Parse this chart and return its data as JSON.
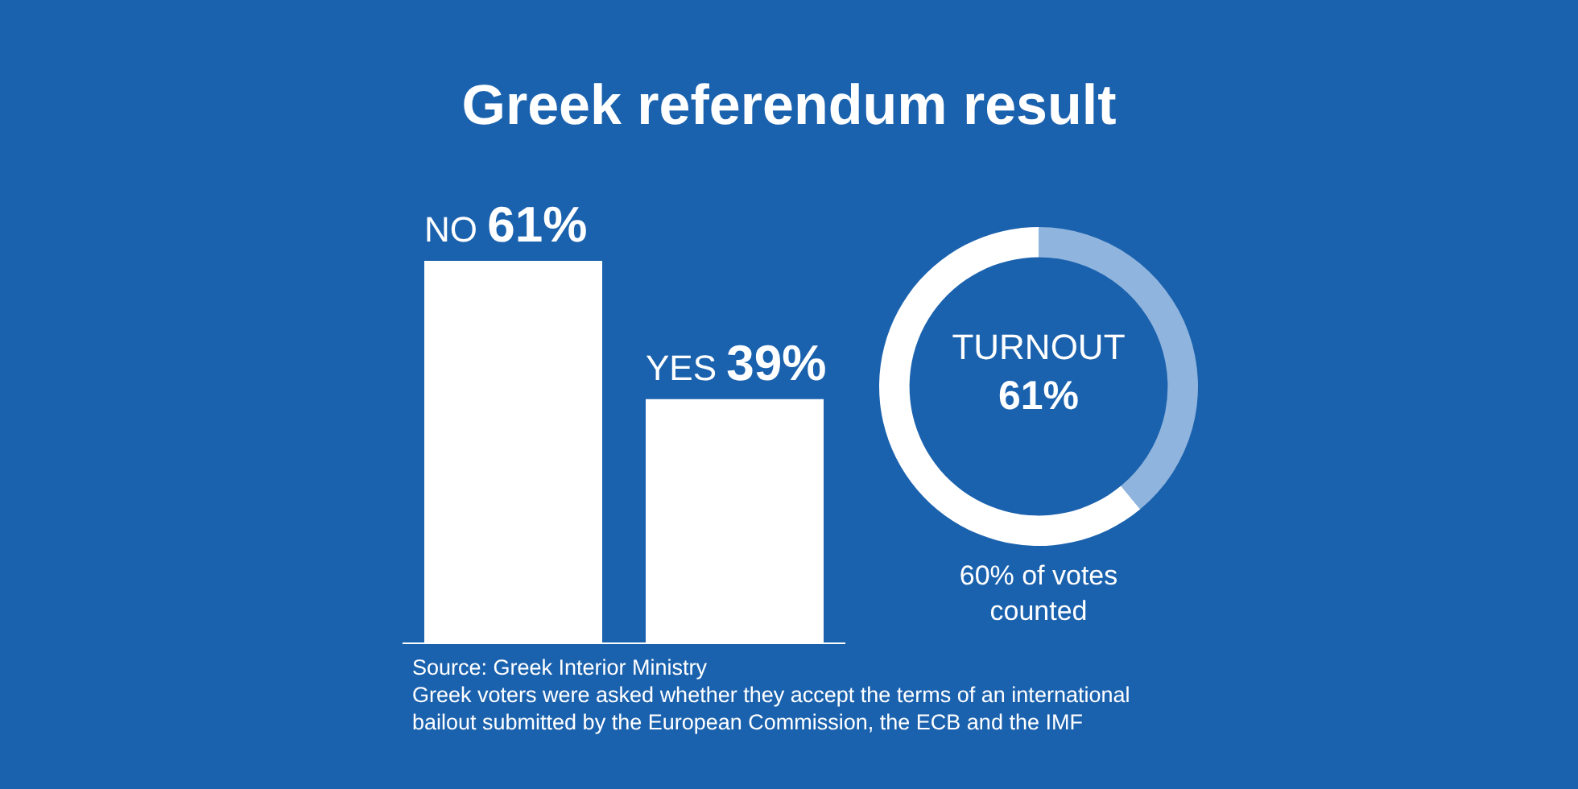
{
  "chart_data": [
    {
      "type": "bar",
      "title": "Greek referendum result",
      "categories": [
        "NO",
        "YES"
      ],
      "values": [
        61,
        39
      ],
      "value_labels": [
        "61%",
        "39%"
      ],
      "color": "#ffffff",
      "annotations": [
        "Source: Greek Interior Ministry",
        "Greek voters were asked whether they accept the terms of an international bailout submitted by the European Commission, the ECB and the IMF"
      ]
    },
    {
      "type": "donut",
      "categories": [
        null,
        null
      ],
      "values": [
        39,
        61
      ],
      "colors": [
        "#8fb4de",
        "#ffffff"
      ],
      "annotations": [
        "TURNOUT",
        "61%",
        "60% of votes counted"
      ]
    }
  ]
}
